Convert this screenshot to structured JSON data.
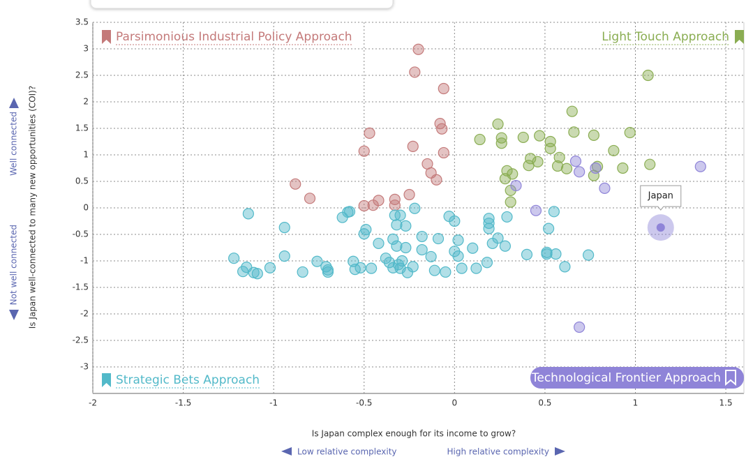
{
  "chart_data": {
    "type": "scatter",
    "xlabel": "Is Japan complex enough for its income to grow?",
    "ylabel": "Is Japan well-connected to many new opportunities (COI)?",
    "y_high_label": "Well connected",
    "y_low_label": "Not well connected",
    "x_low_label": "Low relative complexity",
    "x_high_label": "High relative complexity",
    "xlim": [
      -2,
      1.6
    ],
    "ylim": [
      -3.5,
      3.5
    ],
    "xticks": [
      -2,
      -1.5,
      -1,
      -0.5,
      0,
      0.5,
      1,
      1.5
    ],
    "yticks": [
      3.5,
      3,
      2.5,
      2,
      1.5,
      1,
      0.5,
      0,
      -0.5,
      -1,
      -1.5,
      -2,
      -2.5,
      -3
    ],
    "grid": true,
    "series": [
      {
        "name": "Parsimonious Industrial Policy Approach",
        "color": "#c47a7a",
        "x": [
          -0.2,
          -0.22,
          -0.06,
          -0.08,
          -0.07,
          -0.47,
          -0.23,
          -0.5,
          -0.06,
          -0.15,
          -0.13,
          -0.1,
          -0.88,
          -0.8,
          -0.25,
          -0.33,
          -0.42,
          -0.45,
          -0.5,
          -0.33
        ],
        "values": [
          2.99,
          2.56,
          2.25,
          1.59,
          1.49,
          1.41,
          1.16,
          1.07,
          1.04,
          0.83,
          0.66,
          0.53,
          0.45,
          0.18,
          0.25,
          0.16,
          0.14,
          0.05,
          0.04,
          0.05
        ]
      },
      {
        "name": "Light Touch Approach",
        "color": "#8aad52",
        "x": [
          1.07,
          0.65,
          0.24,
          0.66,
          0.97,
          0.47,
          0.77,
          0.26,
          0.38,
          0.14,
          0.53,
          0.26,
          0.53,
          0.88,
          0.58,
          0.42,
          0.46,
          0.41,
          1.08,
          0.57,
          0.79,
          0.62,
          0.93,
          0.29,
          0.32,
          0.77,
          0.28,
          0.31,
          0.31
        ],
        "values": [
          2.5,
          1.82,
          1.58,
          1.43,
          1.42,
          1.36,
          1.37,
          1.32,
          1.33,
          1.29,
          1.25,
          1.22,
          1.12,
          1.08,
          0.95,
          0.93,
          0.87,
          0.8,
          0.82,
          0.79,
          0.78,
          0.74,
          0.75,
          0.7,
          0.64,
          0.61,
          0.55,
          0.33,
          0.11
        ]
      },
      {
        "name": "Strategic Bets Approach",
        "color": "#52b9c9",
        "x": [
          -1.14,
          -0.94,
          -1.22,
          -1.15,
          -1.17,
          -1.11,
          -1.09,
          -1.02,
          -0.94,
          -0.84,
          -0.76,
          -0.71,
          -0.7,
          -0.7,
          -0.62,
          -0.59,
          -0.58,
          -0.49,
          -0.5,
          -0.56,
          -0.55,
          -0.52,
          -0.46,
          -0.42,
          -0.38,
          -0.36,
          -0.34,
          -0.33,
          -0.32,
          -0.3,
          -0.27,
          -0.34,
          -0.32,
          -0.27,
          -0.31,
          -0.29,
          -0.3,
          -0.26,
          -0.23,
          -0.22,
          -0.18,
          -0.18,
          -0.13,
          -0.09,
          -0.11,
          -0.05,
          -0.03,
          0.0,
          0.02,
          0.0,
          0.02,
          0.04,
          0.1,
          0.12,
          0.19,
          0.19,
          0.19,
          0.24,
          0.21,
          0.28,
          0.29,
          0.18,
          0.4,
          0.51,
          0.51,
          0.56,
          0.52,
          0.55,
          0.61,
          0.74
        ],
        "values": [
          -0.11,
          -0.37,
          -0.95,
          -1.12,
          -1.2,
          -1.22,
          -1.24,
          -1.13,
          -0.91,
          -1.21,
          -1.01,
          -1.11,
          -1.17,
          -1.21,
          -0.18,
          -0.08,
          -0.07,
          -0.41,
          -0.49,
          -1.01,
          -1.16,
          -1.13,
          -1.14,
          -0.67,
          -0.95,
          -1.03,
          -1.13,
          -0.14,
          -0.32,
          -0.14,
          -0.34,
          -0.59,
          -0.72,
          -0.75,
          -1.07,
          -1.0,
          -1.14,
          -1.22,
          -1.11,
          -0.01,
          -0.54,
          -0.79,
          -0.92,
          -0.58,
          -1.18,
          -1.21,
          -0.16,
          -0.25,
          -0.61,
          -0.82,
          -0.91,
          -1.14,
          -0.76,
          -1.14,
          -0.2,
          -0.29,
          -0.39,
          -0.57,
          -0.67,
          -0.72,
          -0.17,
          -1.03,
          -0.88,
          -0.84,
          -0.87,
          -0.87,
          -0.39,
          -0.07,
          -1.11,
          -0.89
        ]
      },
      {
        "name": "Technological Frontier Approach",
        "color": "#8f84d8",
        "x": [
          1.36,
          0.67,
          0.69,
          0.78,
          0.34,
          0.83,
          0.45,
          0.69
        ],
        "values": [
          0.78,
          0.88,
          0.68,
          0.75,
          0.42,
          0.37,
          -0.05,
          -2.25
        ]
      }
    ],
    "highlight": {
      "label": "Japan",
      "x": 1.14,
      "y": -0.37
    }
  }
}
